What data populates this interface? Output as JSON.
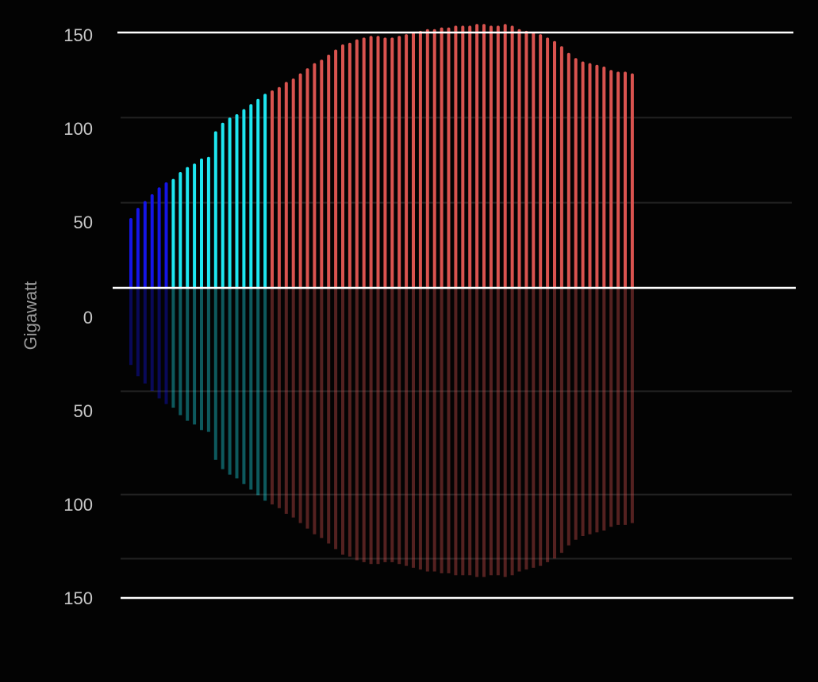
{
  "chart_data": {
    "type": "bar",
    "ylabel": "Gigawatt",
    "upper_ticks": [
      "150",
      "100",
      "50"
    ],
    "lower_ticks": [
      "0",
      "50",
      "100",
      "150"
    ],
    "upper_tick_values": [
      150,
      100,
      50
    ],
    "lower_tick_values": [
      0,
      50,
      100,
      150
    ],
    "ylim": [
      0,
      150
    ],
    "grid": true,
    "colors": {
      "background": "#030303",
      "axis": "#ffffff",
      "grid": "#222222",
      "low": "#1515e6",
      "mid": "#1ee6f0",
      "high": "#d9534f"
    },
    "series": [
      {
        "color_key": "low",
        "values": [
          41,
          47,
          51,
          55,
          59,
          62
        ]
      },
      {
        "color_key": "mid",
        "values": [
          64,
          68,
          71,
          73,
          76,
          77,
          92,
          97,
          100,
          102,
          105,
          108,
          111,
          114
        ]
      },
      {
        "color_key": "high",
        "values": [
          116,
          118,
          121,
          123,
          126,
          129,
          132,
          134,
          137,
          140,
          143,
          144,
          146,
          147,
          148,
          148,
          147,
          147,
          148,
          149,
          150,
          151,
          152,
          152,
          153,
          153,
          154,
          154,
          154,
          155,
          155,
          154,
          154,
          155,
          154,
          152,
          151,
          150,
          149,
          147,
          145,
          142,
          138,
          135,
          133,
          132,
          131,
          130,
          128,
          127,
          127,
          126
        ]
      }
    ]
  }
}
